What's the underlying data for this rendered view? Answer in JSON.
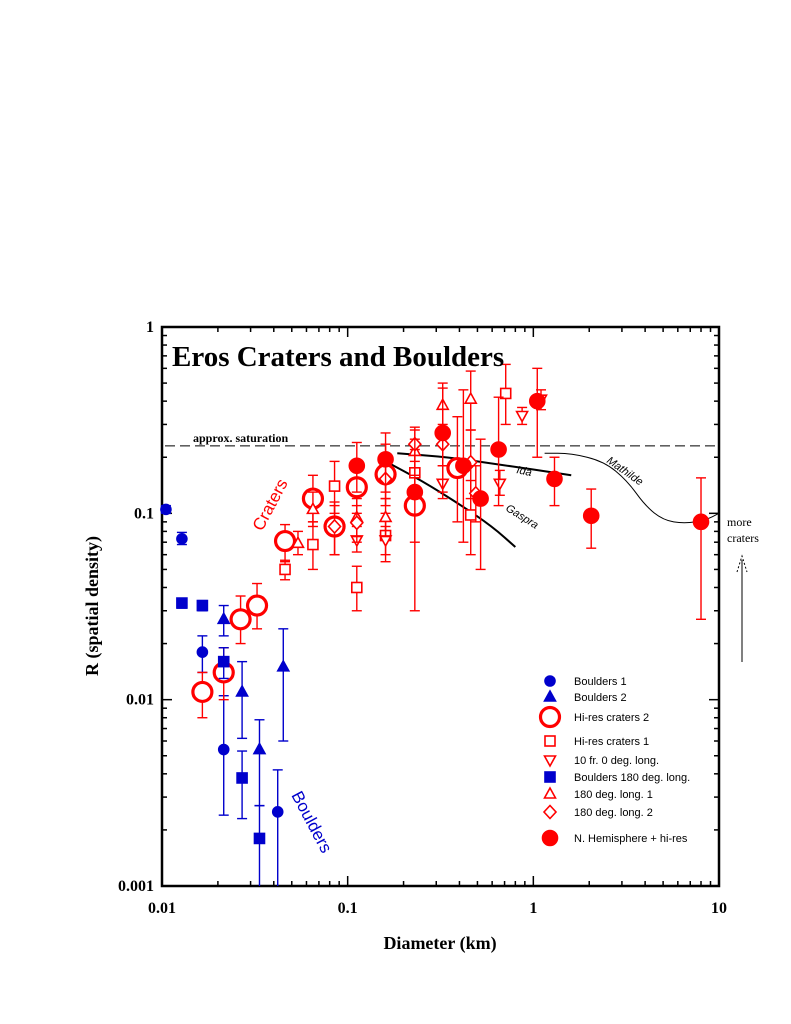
{
  "colors": {
    "red": "#ff0000",
    "blue": "#0000cc",
    "black": "#000000"
  },
  "chart_data": {
    "type": "scatter",
    "title": "Eros Craters and Boulders",
    "xlabel": "Diameter (km)",
    "ylabel": "R (spatial density)",
    "xscale": "log",
    "yscale": "log",
    "xlim": [
      0.01,
      10
    ],
    "ylim": [
      0.001,
      1
    ],
    "x_ticks": [
      {
        "v": 0.01,
        "label": "0.01"
      },
      {
        "v": 0.1,
        "label": "0.1"
      },
      {
        "v": 1,
        "label": "1"
      },
      {
        "v": 10,
        "label": "10"
      }
    ],
    "y_ticks": [
      {
        "v": 0.001,
        "label": "0.001"
      },
      {
        "v": 0.01,
        "label": "0.01"
      },
      {
        "v": 0.1,
        "label": "0.1"
      },
      {
        "v": 1,
        "label": "1"
      }
    ],
    "legend_position": "bottom-right",
    "saturation_line": {
      "y": 0.23,
      "label": "approx. saturation"
    },
    "series": [
      {
        "name": "Boulders 1",
        "marker": "circle",
        "fill": true,
        "color": "#0000cc",
        "size": "small",
        "points": [
          {
            "x": 0.0105,
            "y": 0.105,
            "lo": 0.1,
            "hi": 0.11
          },
          {
            "x": 0.0128,
            "y": 0.073,
            "lo": 0.068,
            "hi": 0.079
          },
          {
            "x": 0.0165,
            "y": 0.018,
            "lo": 0.014,
            "hi": 0.022
          },
          {
            "x": 0.0215,
            "y": 0.0054,
            "lo": 0.0024,
            "hi": 0.0105
          },
          {
            "x": 0.042,
            "y": 0.0025,
            "lo": 0.001,
            "hi": 0.0042
          }
        ]
      },
      {
        "name": "Boulders 2",
        "marker": "triangle",
        "fill": true,
        "color": "#0000cc",
        "size": "small",
        "points": [
          {
            "x": 0.0215,
            "y": 0.027,
            "lo": 0.022,
            "hi": 0.032
          },
          {
            "x": 0.027,
            "y": 0.011,
            "lo": 0.0062,
            "hi": 0.016
          },
          {
            "x": 0.0335,
            "y": 0.0054,
            "lo": 0.0027,
            "hi": 0.0078
          },
          {
            "x": 0.045,
            "y": 0.015,
            "lo": 0.006,
            "hi": 0.024
          }
        ]
      },
      {
        "name": "Hi-res craters 2",
        "marker": "circle",
        "fill": false,
        "color": "#ff0000",
        "size": "large",
        "points": [
          {
            "x": 0.0165,
            "y": 0.011,
            "lo": 0.008,
            "hi": 0.014
          },
          {
            "x": 0.0215,
            "y": 0.014,
            "lo": 0.01,
            "hi": 0.019
          },
          {
            "x": 0.0265,
            "y": 0.027,
            "lo": 0.02,
            "hi": 0.036
          },
          {
            "x": 0.0325,
            "y": 0.032,
            "lo": 0.024,
            "hi": 0.042
          },
          {
            "x": 0.046,
            "y": 0.071,
            "lo": 0.055,
            "hi": 0.087
          },
          {
            "x": 0.065,
            "y": 0.12,
            "lo": 0.09,
            "hi": 0.16
          },
          {
            "x": 0.085,
            "y": 0.085,
            "lo": 0.06,
            "hi": 0.115
          },
          {
            "x": 0.112,
            "y": 0.138,
            "lo": 0.1,
            "hi": 0.19
          },
          {
            "x": 0.16,
            "y": 0.162,
            "lo": 0.11,
            "hi": 0.235
          },
          {
            "x": 0.23,
            "y": 0.11,
            "lo": 0.07,
            "hi": 0.17
          },
          {
            "x": 0.39,
            "y": 0.175,
            "lo": 0.09,
            "hi": 0.33
          }
        ]
      },
      {
        "name": "Hi-res craters 1",
        "marker": "square",
        "fill": false,
        "color": "#ff0000",
        "size": "small",
        "points": [
          {
            "x": 0.046,
            "y": 0.05,
            "lo": 0.044,
            "hi": 0.056
          },
          {
            "x": 0.065,
            "y": 0.068,
            "lo": 0.05,
            "hi": 0.09
          },
          {
            "x": 0.085,
            "y": 0.14,
            "lo": 0.1,
            "hi": 0.19
          },
          {
            "x": 0.112,
            "y": 0.04,
            "lo": 0.03,
            "hi": 0.052
          },
          {
            "x": 0.16,
            "y": 0.076,
            "lo": 0.055,
            "hi": 0.1
          },
          {
            "x": 0.23,
            "y": 0.165,
            "lo": 0.12,
            "hi": 0.22
          },
          {
            "x": 0.46,
            "y": 0.098,
            "lo": 0.06,
            "hi": 0.15
          },
          {
            "x": 0.71,
            "y": 0.44,
            "lo": 0.3,
            "hi": 0.63
          }
        ]
      },
      {
        "name": "10 fr. 0 deg. long.",
        "marker": "triangle-down",
        "fill": false,
        "color": "#ff0000",
        "size": "small",
        "points": [
          {
            "x": 0.112,
            "y": 0.072,
            "lo": 0.062,
            "hi": 0.085
          },
          {
            "x": 0.16,
            "y": 0.072,
            "lo": 0.06,
            "hi": 0.085
          },
          {
            "x": 0.325,
            "y": 0.145,
            "lo": 0.12,
            "hi": 0.18
          },
          {
            "x": 0.66,
            "y": 0.145,
            "lo": 0.125,
            "hi": 0.17
          },
          {
            "x": 0.87,
            "y": 0.335,
            "lo": 0.3,
            "hi": 0.37
          },
          {
            "x": 1.1,
            "y": 0.41,
            "lo": 0.36,
            "hi": 0.46
          }
        ]
      },
      {
        "name": "Boulders 180 deg. long.",
        "marker": "square",
        "fill": true,
        "color": "#0000cc",
        "size": "small",
        "points": [
          {
            "x": 0.0128,
            "y": 0.033,
            "lo": 0.031,
            "hi": 0.035
          },
          {
            "x": 0.0165,
            "y": 0.032,
            "lo": 0.03,
            "hi": 0.034
          },
          {
            "x": 0.0215,
            "y": 0.016,
            "lo": 0.013,
            "hi": 0.019
          },
          {
            "x": 0.027,
            "y": 0.0038,
            "lo": 0.0023,
            "hi": 0.0053
          },
          {
            "x": 0.0335,
            "y": 0.0018,
            "lo": 0.001,
            "hi": 0.0027
          }
        ]
      },
      {
        "name": "180 deg. long. 1",
        "marker": "triangle",
        "fill": false,
        "color": "#ff0000",
        "size": "small",
        "points": [
          {
            "x": 0.054,
            "y": 0.069,
            "lo": 0.06,
            "hi": 0.08
          },
          {
            "x": 0.065,
            "y": 0.105,
            "lo": 0.085,
            "hi": 0.13
          },
          {
            "x": 0.112,
            "y": 0.095,
            "lo": 0.075,
            "hi": 0.12
          },
          {
            "x": 0.16,
            "y": 0.095,
            "lo": 0.075,
            "hi": 0.12
          },
          {
            "x": 0.23,
            "y": 0.215,
            "lo": 0.16,
            "hi": 0.28
          },
          {
            "x": 0.325,
            "y": 0.38,
            "lo": 0.28,
            "hi": 0.5
          },
          {
            "x": 0.46,
            "y": 0.41,
            "lo": 0.28,
            "hi": 0.58
          }
        ]
      },
      {
        "name": "180 deg. long. 2",
        "marker": "diamond",
        "fill": false,
        "color": "#ff0000",
        "size": "small",
        "points": [
          {
            "x": 0.085,
            "y": 0.085,
            "lo": 0.06,
            "hi": 0.11
          },
          {
            "x": 0.112,
            "y": 0.089,
            "lo": 0.07,
            "hi": 0.11
          },
          {
            "x": 0.16,
            "y": 0.153,
            "lo": 0.12,
            "hi": 0.19
          },
          {
            "x": 0.23,
            "y": 0.235,
            "lo": 0.19,
            "hi": 0.29
          },
          {
            "x": 0.325,
            "y": 0.235,
            "lo": 0.18,
            "hi": 0.3
          },
          {
            "x": 0.46,
            "y": 0.188,
            "lo": 0.12,
            "hi": 0.28
          },
          {
            "x": 0.49,
            "y": 0.128,
            "lo": 0.09,
            "hi": 0.18
          }
        ]
      },
      {
        "name": "N. Hemisphere + hi-res",
        "marker": "circle",
        "fill": true,
        "color": "#ff0000",
        "size": "medium",
        "points": [
          {
            "x": 0.112,
            "y": 0.18,
            "lo": 0.13,
            "hi": 0.24
          },
          {
            "x": 0.16,
            "y": 0.195,
            "lo": 0.13,
            "hi": 0.27
          },
          {
            "x": 0.23,
            "y": 0.13,
            "lo": 0.03,
            "hi": 0.25
          },
          {
            "x": 0.325,
            "y": 0.27,
            "lo": 0.13,
            "hi": 0.47
          },
          {
            "x": 0.42,
            "y": 0.18,
            "lo": 0.07,
            "hi": 0.46
          },
          {
            "x": 0.52,
            "y": 0.12,
            "lo": 0.05,
            "hi": 0.25
          },
          {
            "x": 0.65,
            "y": 0.22,
            "lo": 0.11,
            "hi": 0.42
          },
          {
            "x": 1.05,
            "y": 0.4,
            "lo": 0.2,
            "hi": 0.6
          },
          {
            "x": 1.3,
            "y": 0.153,
            "lo": 0.11,
            "hi": 0.2
          },
          {
            "x": 2.05,
            "y": 0.097,
            "lo": 0.065,
            "hi": 0.135
          },
          {
            "x": 8.0,
            "y": 0.09,
            "lo": 0.027,
            "hi": 0.155
          }
        ]
      }
    ],
    "curves": [
      {
        "name": "Ida",
        "points": [
          [
            0.185,
            0.21
          ],
          [
            0.35,
            0.2
          ],
          [
            0.6,
            0.185
          ],
          [
            1.0,
            0.172
          ],
          [
            1.6,
            0.16
          ]
        ]
      },
      {
        "name": "Gaspra",
        "points": [
          [
            0.16,
            0.19
          ],
          [
            0.25,
            0.15
          ],
          [
            0.4,
            0.112
          ],
          [
            0.6,
            0.085
          ],
          [
            0.8,
            0.066
          ]
        ]
      },
      {
        "name": "Mathilde",
        "points": [
          [
            1.15,
            0.21
          ],
          [
            1.6,
            0.21
          ],
          [
            2.4,
            0.19
          ],
          [
            3.2,
            0.15
          ],
          [
            4.0,
            0.11
          ],
          [
            5.0,
            0.092
          ],
          [
            6.5,
            0.088
          ],
          [
            8.5,
            0.092
          ],
          [
            10,
            0.1
          ]
        ]
      }
    ],
    "annotations": [
      {
        "text": "Craters",
        "color": "#ff0000"
      },
      {
        "text": "Boulders",
        "color": "#0000cc"
      },
      {
        "text": "Ida",
        "color": "#000000"
      },
      {
        "text": "Gaspra",
        "color": "#000000"
      },
      {
        "text": "Mathilde",
        "color": "#000000"
      },
      {
        "text": "more",
        "color": "#000000"
      },
      {
        "text": "craters",
        "color": "#000000"
      }
    ]
  }
}
